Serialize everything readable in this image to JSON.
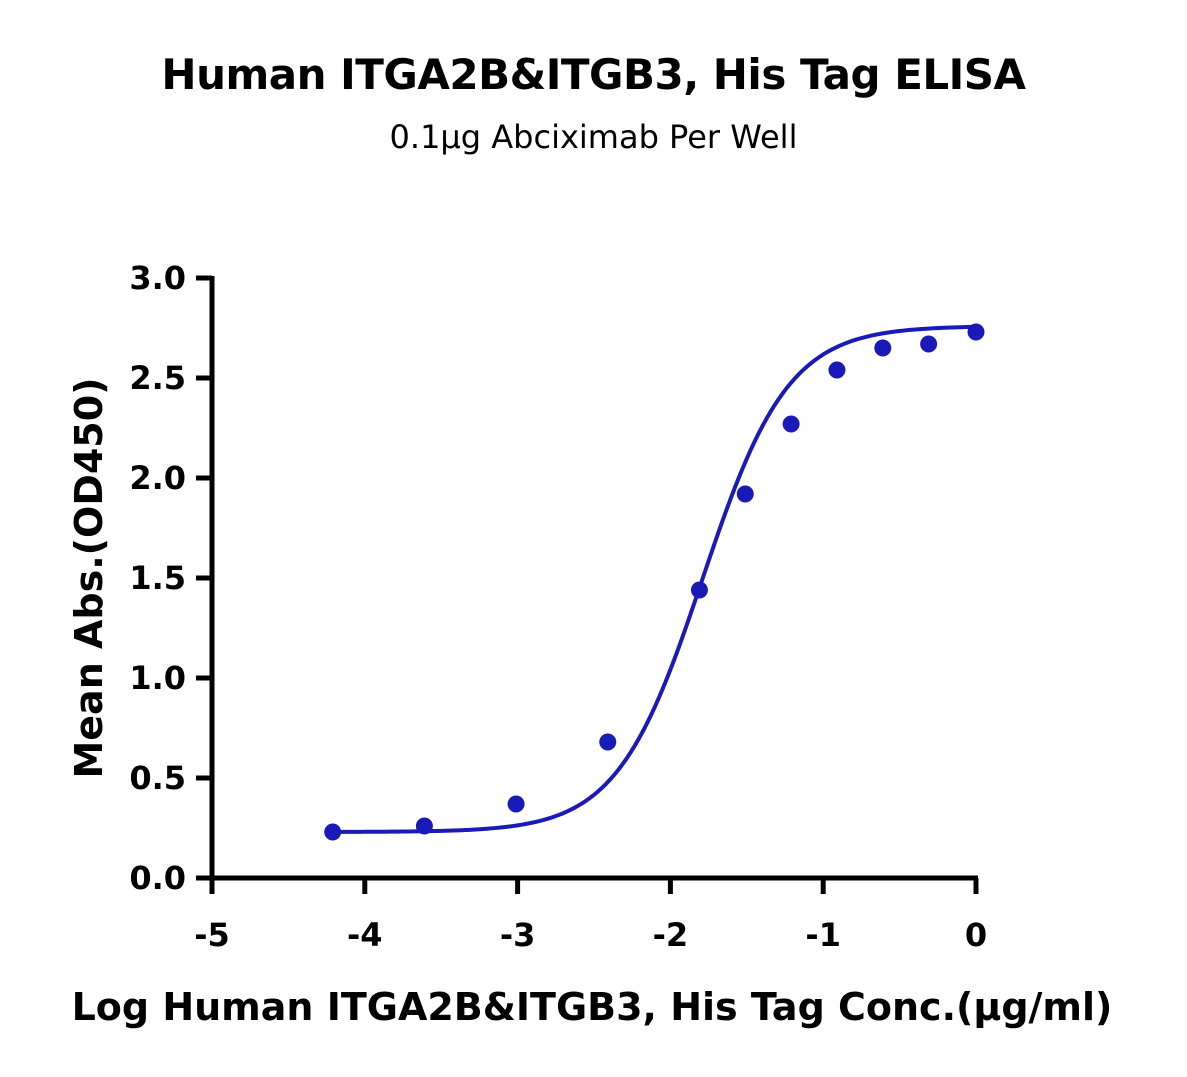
{
  "chart_data": {
    "type": "scatter",
    "title": "Human ITGA2B&ITGB3, His Tag ELISA",
    "subtitle": "0.1μg Abciximab Per Well",
    "xlabel": "Log Human ITGA2B&ITGB3, His Tag Conc.(μg/ml)",
    "ylabel": "Mean Abs.(OD450)",
    "xlim": [
      -5,
      0
    ],
    "ylim": [
      0.0,
      3.0
    ],
    "xticks": [
      "-5",
      "-4",
      "-3",
      "-2",
      "-1",
      "0"
    ],
    "yticks": [
      "0.0",
      "0.5",
      "1.0",
      "1.5",
      "2.0",
      "2.5",
      "3.0"
    ],
    "grid": false,
    "legend": "none",
    "color": "#1a1ab8",
    "series": [
      {
        "x": [
          -4.21,
          -3.61,
          -3.01,
          -2.41,
          -1.81,
          -1.51,
          -1.21,
          -0.91,
          -0.61,
          -0.31,
          0.0
        ],
        "y": [
          0.23,
          0.26,
          0.37,
          0.68,
          1.44,
          1.92,
          2.27,
          2.54,
          2.65,
          2.67,
          2.73
        ]
      }
    ],
    "fit": {
      "model": "4PL",
      "bottom": 0.23,
      "top": 2.76,
      "logEC50": -1.79,
      "hill": 1.55
    }
  }
}
